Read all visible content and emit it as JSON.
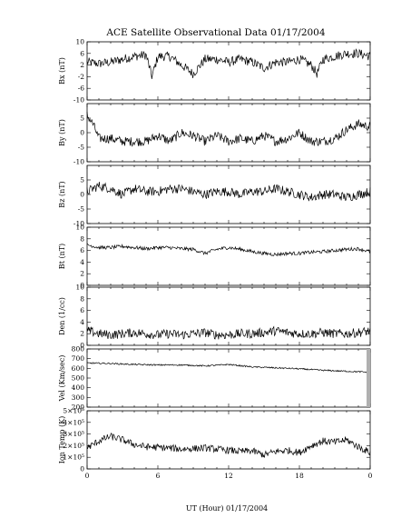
{
  "chart_data": {
    "type": "line",
    "title": "ACE Satellite Observational Data   01/17/2004",
    "xlabel": "UT (Hour)   01/17/2004",
    "x_ticks": [
      "0",
      "6",
      "12",
      "18",
      "0"
    ],
    "xlim": [
      0,
      24
    ],
    "panels": [
      {
        "ylabel": "Bx (nT)",
        "ylim": [
          -10,
          10
        ],
        "y_ticks": [
          "10",
          "6",
          "2",
          "-2",
          "-6",
          "-10"
        ],
        "series": [
          {
            "x": [
              0,
              1,
              2,
              3,
              4,
              5,
              5.5,
              6,
              7,
              8,
              9,
              10,
              11,
              12,
              13,
              14,
              15,
              16,
              17,
              18,
              19,
              19.5,
              20,
              21,
              22,
              23,
              24
            ],
            "y": [
              3,
              2.5,
              3,
              4,
              5,
              5.5,
              -2,
              5,
              5,
              2,
              -1,
              4,
              4,
              3,
              4,
              3,
              1,
              3,
              3,
              4,
              2,
              -1,
              4,
              5,
              6,
              6,
              5
            ]
          }
        ]
      },
      {
        "ylabel": "By (nT)",
        "ylim": [
          -10,
          10
        ],
        "y_ticks": [
          "5",
          "0",
          "-5",
          "-10"
        ],
        "series": [
          {
            "x": [
              0,
              0.5,
              1,
              2,
              3,
              4,
              5,
              6,
              7,
              8,
              9,
              10,
              11,
              12,
              13,
              14,
              15,
              16,
              17,
              18,
              19,
              20,
              21,
              22,
              23,
              24
            ],
            "y": [
              6,
              3,
              -2,
              -2,
              -3,
              -3,
              -3,
              -1,
              -3,
              0,
              -1,
              -3,
              -1,
              -3,
              -2,
              -3,
              -1,
              -3,
              -2,
              0,
              -3,
              -3,
              -2,
              1,
              3,
              2
            ]
          }
        ]
      },
      {
        "ylabel": "Bz (nT)",
        "ylim": [
          -10,
          10
        ],
        "y_ticks": [
          "5",
          "0",
          "-5",
          "-10"
        ],
        "series": [
          {
            "x": [
              0,
              1,
              2,
              3,
              4,
              5,
              6,
              7,
              8,
              9,
              10,
              11,
              12,
              13,
              14,
              15,
              16,
              17,
              18,
              19,
              20,
              21,
              22,
              23,
              24
            ],
            "y": [
              1,
              3,
              2,
              0,
              2,
              1,
              1,
              2,
              2,
              1,
              0,
              1,
              1,
              0,
              1,
              1,
              2,
              1,
              0,
              -1,
              0,
              0,
              -1,
              0,
              1
            ]
          }
        ]
      },
      {
        "ylabel": "Bt (nT)",
        "ylim": [
          0,
          10
        ],
        "y_ticks": [
          "10",
          "8",
          "6",
          "4",
          "2",
          "0"
        ],
        "series": [
          {
            "x": [
              0,
              1,
              2,
              3,
              4,
              5,
              6,
              7,
              8,
              9,
              10,
              11,
              12,
              13,
              14,
              15,
              16,
              17,
              18,
              19,
              20,
              21,
              22,
              23,
              24
            ],
            "y": [
              7,
              6.5,
              6.5,
              6.7,
              6.5,
              6.3,
              6.5,
              6.5,
              6.3,
              6.2,
              5.5,
              6.2,
              6.5,
              6.2,
              5.8,
              5.5,
              5.3,
              5.5,
              5.5,
              5.7,
              5.8,
              6,
              6.2,
              6.3,
              5.8
            ]
          }
        ]
      },
      {
        "ylabel": "Den (1/cc)",
        "ylim": [
          0,
          10
        ],
        "y_ticks": [
          "10",
          "8",
          "6",
          "4",
          "2",
          "0"
        ],
        "series": [
          {
            "x": [
              0,
              1,
              2,
              3,
              4,
              5,
              6,
              7,
              8,
              9,
              10,
              11,
              12,
              13,
              14,
              15,
              16,
              17,
              18,
              19,
              20,
              21,
              22,
              23,
              24
            ],
            "y": [
              2.5,
              2,
              1.8,
              2,
              2.2,
              2,
              1.8,
              2,
              1.8,
              2,
              2.2,
              1.8,
              1.8,
              2,
              2,
              2.2,
              2.5,
              2.2,
              2,
              2,
              2.2,
              2,
              2,
              2.2,
              2.5
            ]
          }
        ]
      },
      {
        "ylabel": "Vel (Km/sec)",
        "ylim": [
          200,
          800
        ],
        "y_ticks": [
          "800",
          "700",
          "600",
          "500",
          "400",
          "300",
          "200"
        ],
        "series": [
          {
            "x": [
              0,
              2,
              4,
              6,
              8,
              10,
              12,
              14,
              16,
              18,
              20,
              22,
              24
            ],
            "y": [
              655,
              650,
              640,
              635,
              635,
              625,
              640,
              615,
              605,
              595,
              580,
              570,
              560
            ]
          }
        ]
      },
      {
        "ylabel": "Ion Temp (K)",
        "ylim": [
          0,
          500000
        ],
        "y_ticks": [
          "5×10⁵",
          "4×10⁵",
          "3×10⁵",
          "2×10⁵",
          "1×10⁵",
          "0"
        ],
        "series": [
          {
            "x": [
              0,
              1,
              2,
              3,
              4,
              5,
              6,
              7,
              8,
              9,
              10,
              11,
              12,
              13,
              14,
              15,
              16,
              17,
              18,
              19,
              20,
              21,
              22,
              23,
              24
            ],
            "y": [
              180000,
              240000,
              280000,
              250000,
              210000,
              190000,
              185000,
              180000,
              170000,
              175000,
              180000,
              170000,
              160000,
              150000,
              155000,
              120000,
              150000,
              160000,
              140000,
              200000,
              240000,
              230000,
              250000,
              190000,
              140000
            ]
          }
        ]
      }
    ]
  }
}
